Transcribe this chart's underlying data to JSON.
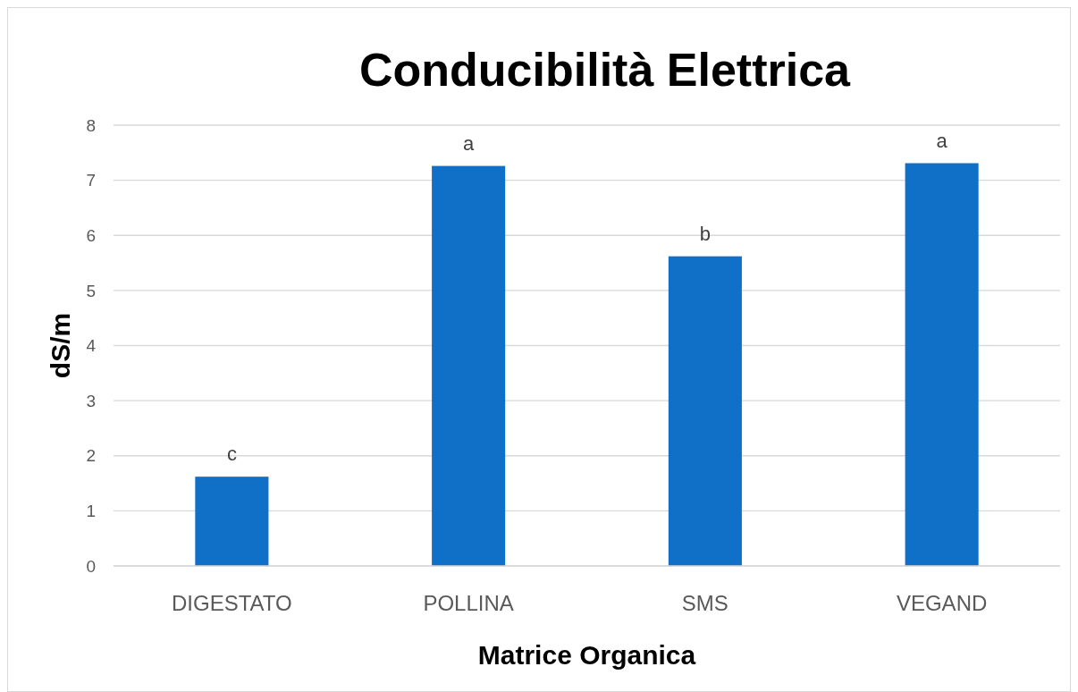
{
  "chart_data": {
    "type": "bar",
    "title": "Conducibilità Elettrica",
    "xlabel": "Matrice Organica",
    "ylabel": "dS/m",
    "categories": [
      "DIGESTATO",
      "POLLINA",
      "SMS",
      "VEGAND"
    ],
    "values": [
      1.62,
      7.26,
      5.62,
      7.31
    ],
    "color": "#1070c8",
    "ylim": [
      0,
      8
    ],
    "yticks": [
      0,
      1,
      2,
      3,
      4,
      5,
      6,
      7,
      8
    ],
    "grid": "y",
    "annotations": [
      {
        "text": "c",
        "x": "DIGESTATO",
        "y": 1.62
      },
      {
        "text": "a",
        "x": "POLLINA",
        "y": 7.26
      },
      {
        "text": "b",
        "x": "SMS",
        "y": 5.62
      },
      {
        "text": "a",
        "x": "VEGAND",
        "y": 7.31
      }
    ]
  }
}
